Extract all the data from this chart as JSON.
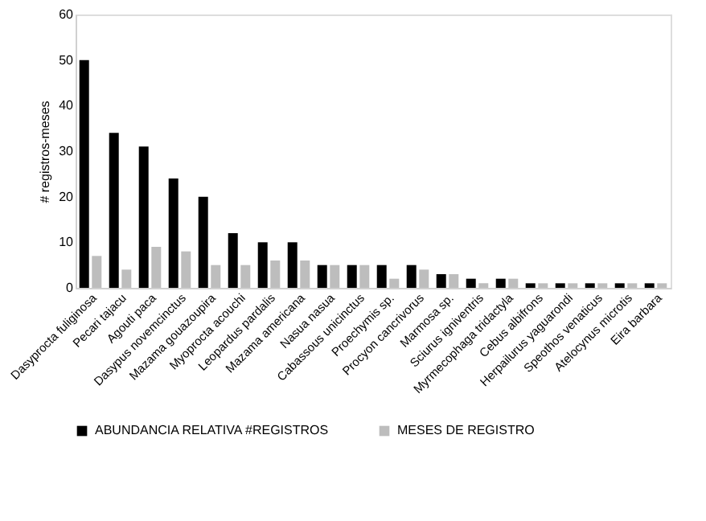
{
  "chart_data": {
    "type": "bar",
    "ylabel": "# registros-meses",
    "categories": [
      "Dasyprocta fuliginosa",
      "Pecari tajacu",
      "Agouti paca",
      "Dasypus novemcinctus",
      "Mazama gouazoupira",
      "Myoprocta acouchi",
      "Leopardus pardalis",
      "Mazama americana",
      "Nasua nasua",
      "Cabassous unicinctus",
      "Proechymis sp.",
      "Procyon cancrivorus",
      "Marmosa sp.",
      "Sciurus igniventris",
      "Myrmecophaga tridactyla",
      "Cebus albifrons",
      "Herpailurus yaguarondi",
      "Speothos venaticus",
      "Atelocynus microtis",
      "Eira barbara"
    ],
    "series": [
      {
        "name": "ABUNDANCIA RELATIVA #REGISTROS",
        "color": "#000000",
        "values": [
          50,
          34,
          31,
          24,
          20,
          12,
          10,
          10,
          5,
          5,
          5,
          5,
          3,
          2,
          2,
          1,
          1,
          1,
          1,
          1
        ]
      },
      {
        "name": "MESES DE REGISTRO",
        "color": "#bdbdbd",
        "values": [
          7,
          4,
          9,
          8,
          5,
          5,
          6,
          6,
          5,
          5,
          2,
          4,
          3,
          1,
          2,
          1,
          1,
          1,
          1,
          1
        ]
      }
    ],
    "ylim": [
      0,
      60
    ],
    "yticks": [
      0,
      10,
      20,
      30,
      40,
      50,
      60
    ],
    "grid": false,
    "legend": "bottom"
  }
}
